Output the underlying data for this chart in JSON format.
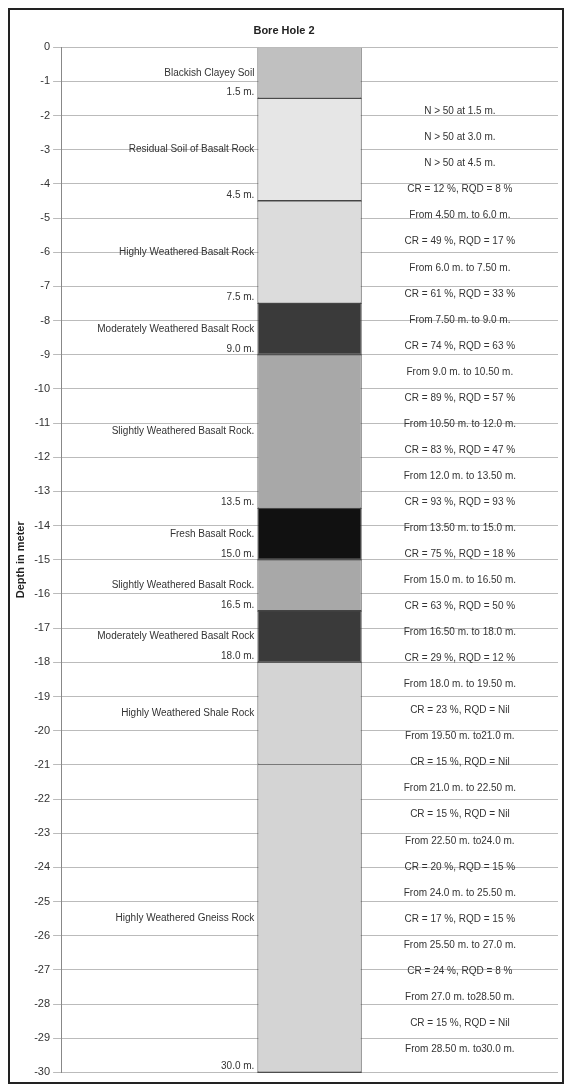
{
  "chart_data": {
    "type": "bar",
    "title": "Bore Hole 2",
    "ylabel": "Depth in meter",
    "categories": [
      null
    ],
    "stacked": true,
    "grid": "y",
    "ylim": [
      -30,
      0
    ],
    "yticks": [
      0,
      -1,
      -2,
      -3,
      -4,
      -5,
      -6,
      -7,
      -8,
      -9,
      -10,
      -11,
      -12,
      -13,
      -14,
      -15,
      -16,
      -17,
      -18,
      -19,
      -20,
      -21,
      -22,
      -23,
      -24,
      -25,
      -26,
      -27,
      -28,
      -29,
      -30
    ],
    "series": [
      {
        "name": "Blackish Clayey Soil",
        "color": "#c0c0c0",
        "values": [
          -1.5
        ]
      },
      {
        "name": "Residual Soil of Basalt Rock",
        "color": "#e6e6e6",
        "values": [
          -3
        ]
      },
      {
        "name": "Highly Weathered Basalt Rock",
        "color": "#dcdcdc",
        "values": [
          -3
        ]
      },
      {
        "name": "Moderately Weathered Basalt Rock",
        "color": "#3a3a3a",
        "values": [
          -1.5
        ]
      },
      {
        "name": "Slightly Weathered Basalt Rock.",
        "color": "#a8a8a8",
        "values": [
          -4.5
        ]
      },
      {
        "name": "Fresh Basalt Rock.",
        "color": "#111111",
        "values": [
          -1.5
        ]
      },
      {
        "name": "Slightly Weathered Basalt Rock.",
        "color": "#a8a8a8",
        "values": [
          -1.5
        ]
      },
      {
        "name": "Moderately Weathered Basalt Rock",
        "color": "#3a3a3a",
        "values": [
          -1.5
        ]
      },
      {
        "name": "Highly Weathered Shale Rock",
        "color": "#d4d4d4",
        "values": [
          -3
        ]
      },
      {
        "name": "Highly Weathered Gneiss Rock",
        "color": "#d4d4d4",
        "values": [
          -9
        ]
      }
    ],
    "ref_lines": [
      {
        "axis": "y",
        "value": -1.5,
        "label": "1.5 m."
      },
      {
        "axis": "y",
        "value": -4.5,
        "label": "4.5 m."
      },
      {
        "axis": "y",
        "value": -7.5,
        "label": "7.5 m."
      },
      {
        "axis": "y",
        "value": -9,
        "label": "9.0 m."
      },
      {
        "axis": "y",
        "value": -13.5,
        "label": "13.5 m."
      },
      {
        "axis": "y",
        "value": -15,
        "label": "15.0 m."
      },
      {
        "axis": "y",
        "value": -16.5,
        "label": "16.5 m."
      },
      {
        "axis": "y",
        "value": -18,
        "label": "18.0 m."
      },
      {
        "axis": "y",
        "value": -30,
        "label": "30.0 m."
      }
    ],
    "annotations": [
      "N > 50 at 1.5 m.",
      "N > 50 at 3.0 m.",
      "N > 50 at 4.5 m.",
      "CR = 12 %, RQD = 8 %",
      "From 4.50 m. to 6.0 m.",
      "CR = 49 %, RQD = 17 %",
      "From 6.0 m. to 7.50 m.",
      "CR = 61 %, RQD = 33 %",
      "From 7.50 m. to 9.0 m.",
      "CR = 74 %, RQD = 63 %",
      "From 9.0 m. to 10.50 m.",
      "CR = 89 %, RQD = 57 %",
      "From 10.50 m. to 12.0 m.",
      "CR = 83 %, RQD = 47 %",
      "From 12.0 m. to 13.50 m.",
      "CR = 93 %, RQD = 93 %",
      "From 13.50 m. to 15.0 m.",
      "CR = 75 %, RQD = 18 %",
      "From 15.0 m. to 16.50 m.",
      "CR = 63 %, RQD = 50 %",
      "From 16.50 m. to 18.0 m.",
      "CR = 29 %, RQD = 12 %",
      "From 18.0 m. to 19.50 m.",
      "CR = 23 %, RQD = Nil",
      "From 19.50 m. to21.0 m.",
      "CR = 15 %, RQD = Nil",
      "From 21.0 m. to 22.50 m.",
      "CR = 15 %, RQD = Nil",
      "From 22.50 m. to24.0 m.",
      "CR = 20 %, RQD = 15 %",
      "From 24.0 m. to 25.50 m.",
      "CR = 17 %, RQD = 15 %",
      "From 25.50 m. to 27.0 m.",
      "CR = 24 %, RQD = 8 %",
      "From 27.0 m. to28.50 m.",
      "CR = 15 %, RQD = Nil",
      "From 28.50 m. to30.0 m."
    ]
  }
}
